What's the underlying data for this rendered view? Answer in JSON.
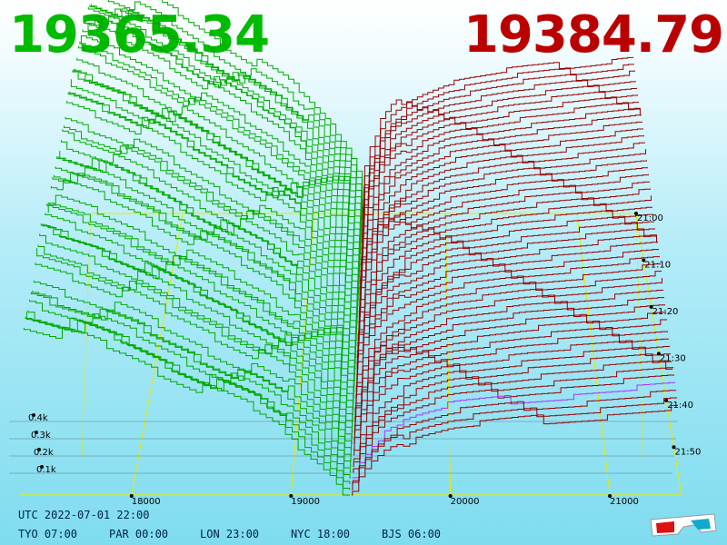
{
  "prices": {
    "bid": "19365.34",
    "ask": "19384.79",
    "bid_color": "#00bb00",
    "ask_color": "#bb0000"
  },
  "footer": {
    "utc": "UTC 2022-07-01 22:00",
    "zones": [
      "TYO 07:00",
      "PAR 00:00",
      "LON 23:00",
      "NYC 18:00",
      "BJS 06:00"
    ]
  },
  "icons": {
    "glasses": "3d-glasses-icon"
  },
  "chart_data": {
    "type": "3d-depth-waterfall",
    "price_axis": {
      "ticks": [
        18000,
        19000,
        20000,
        21000
      ],
      "min": 17300,
      "max": 21450
    },
    "volume_axis": {
      "ticks": [
        "0.1k",
        "0.2k",
        "0.3k",
        "0.4k"
      ],
      "values": [
        100,
        200,
        300,
        400
      ]
    },
    "time_axis": {
      "ticks": [
        "21:00",
        "21:10",
        "21:20",
        "21:30",
        "21:40",
        "21:50"
      ]
    },
    "mid_price": 19375,
    "snapshots": 50,
    "bid_color": "#00aa00",
    "ask_color": "#990000",
    "grid_color": "#e8e800",
    "bid_depth": [
      [
        19365,
        0
      ],
      [
        19300,
        30
      ],
      [
        19200,
        55
      ],
      [
        19000,
        95
      ],
      [
        18800,
        125
      ],
      [
        18500,
        160
      ],
      [
        18200,
        195
      ],
      [
        18000,
        220
      ],
      [
        17700,
        250
      ],
      [
        17300,
        280
      ]
    ],
    "ask_depth": [
      [
        19385,
        0
      ],
      [
        19420,
        25
      ],
      [
        19500,
        55
      ],
      [
        19600,
        80
      ],
      [
        19800,
        100
      ],
      [
        20000,
        115
      ],
      [
        20500,
        130
      ],
      [
        21000,
        140
      ],
      [
        21450,
        150
      ]
    ]
  }
}
